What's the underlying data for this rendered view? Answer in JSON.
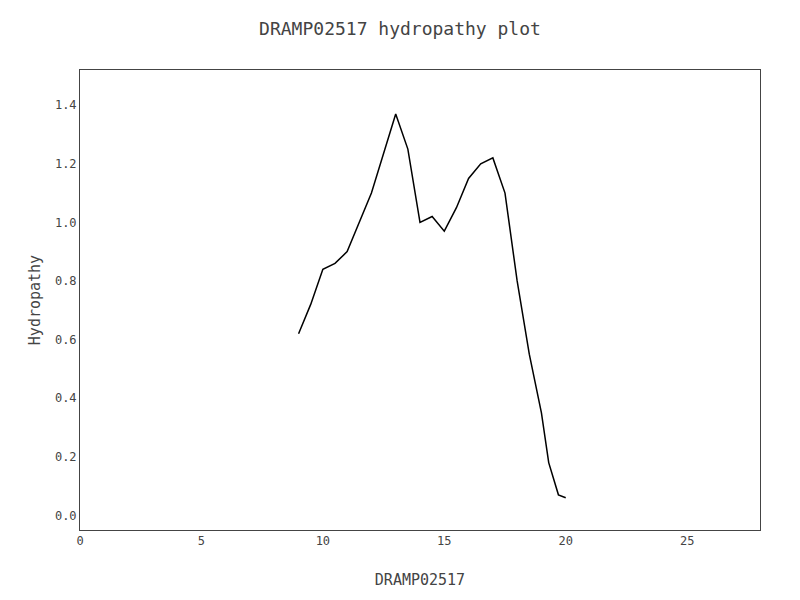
{
  "chart_data": {
    "type": "line",
    "title": "DRAMP02517 hydropathy plot",
    "xlabel": "DRAMP02517",
    "ylabel": "Hydropathy",
    "x": [
      9,
      9.5,
      10,
      10.5,
      11,
      12,
      13,
      13.5,
      14,
      14.5,
      15,
      15.5,
      16,
      16.5,
      17,
      17.5,
      18,
      18.5,
      19,
      19.3,
      19.7,
      20
    ],
    "values": [
      0.62,
      0.72,
      0.84,
      0.86,
      0.9,
      1.1,
      1.37,
      1.25,
      1.0,
      1.02,
      0.97,
      1.05,
      1.15,
      1.2,
      1.22,
      1.1,
      0.8,
      0.55,
      0.35,
      0.18,
      0.07,
      0.06
    ],
    "color": "#000000",
    "xlim": [
      0,
      28
    ],
    "xticks": [
      0,
      5,
      10,
      15,
      20,
      25
    ],
    "ylim": [
      -0.05,
      1.52
    ],
    "yticks": [
      {
        "value": 0,
        "label": "0.0"
      },
      0.2,
      0.4,
      0.6,
      0.8,
      {
        "value": 1,
        "label": "1.0"
      },
      1.2,
      1.4
    ],
    "grid": false
  }
}
